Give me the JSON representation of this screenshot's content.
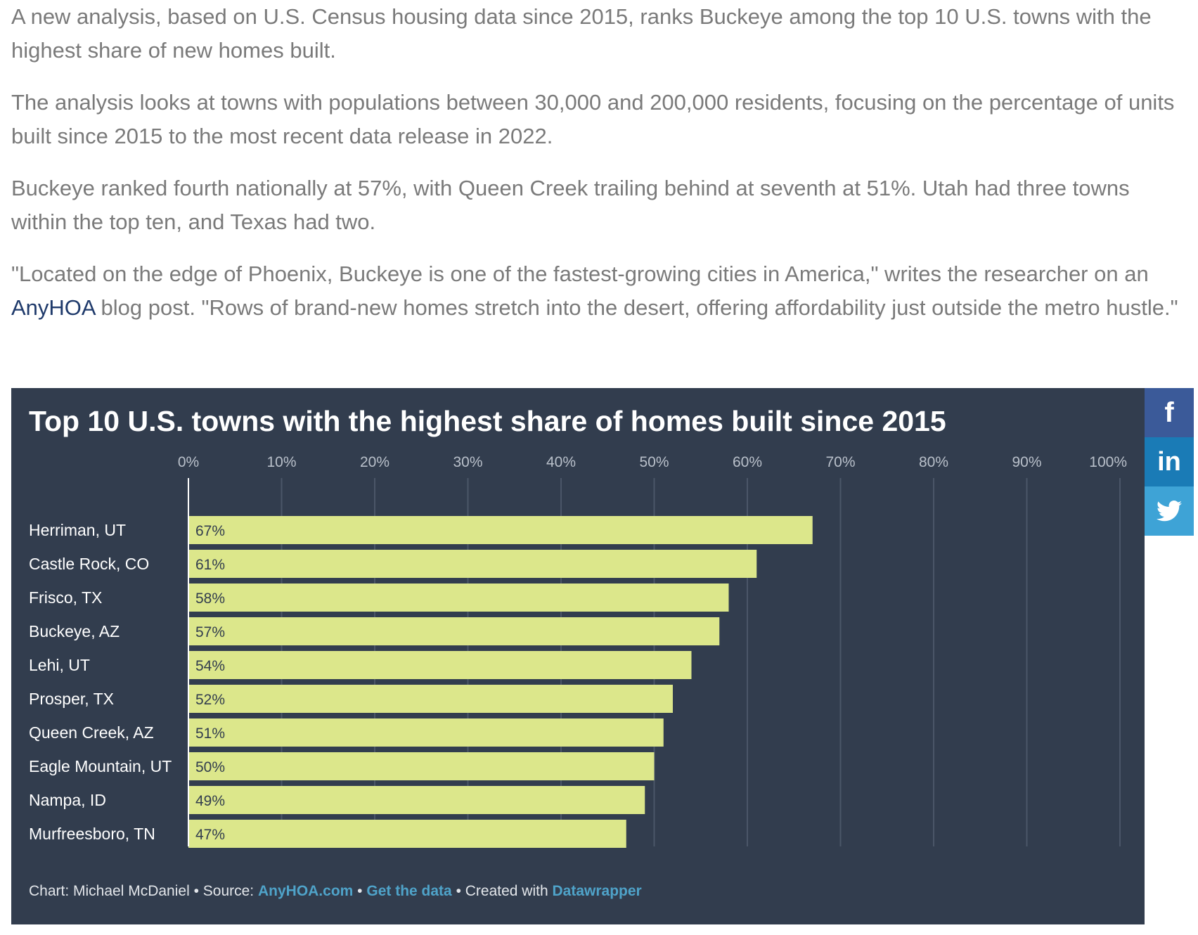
{
  "article": {
    "p1": "A new analysis, based on U.S. Census housing data since 2015, ranks Buckeye among the top 10 U.S. towns with the highest share of new homes built.",
    "p2": "The analysis looks at towns with populations between 30,000 and 200,000 residents, focusing on the percentage of units built since 2015 to the most recent data release in 2022.",
    "p3": "Buckeye ranked fourth nationally at 57%, with Queen Creek trailing behind at seventh at 51%. Utah had three towns within the top ten, and Texas had two.",
    "p4_before": "\"Located on the edge of Phoenix, Buckeye is one of the fastest-growing cities in America,\" writes the researcher on an ",
    "p4_link": "AnyHOA",
    "p4_after": " blog post. \"Rows of brand-new homes stretch into the desert, offering affordability just outside the metro hustle.\""
  },
  "footer": {
    "chart_prefix": "Chart: Michael McDaniel • Source: ",
    "source_link": "AnyHOA.com",
    "sep1": " • ",
    "data_link": "Get the data",
    "created_prefix": " • Created with ",
    "dw_link": "Datawrapper"
  },
  "share": {
    "facebook_icon": "f",
    "linkedin_icon": "in",
    "twitter_icon": "twitter-bird-icon"
  },
  "colors": {
    "background": "#323d4e",
    "bar": "#dce78b",
    "link": "#4fa3c9",
    "article_text": "#7a7a7a",
    "article_link": "#1f3a6b"
  },
  "chart_data": {
    "type": "bar",
    "orientation": "horizontal",
    "title": "Top 10 U.S. towns with the highest share of homes built since 2015",
    "categories": [
      "Herriman, UT",
      "Castle Rock, CO",
      "Frisco, TX",
      "Buckeye, AZ",
      "Lehi, UT",
      "Prosper, TX",
      "Queen Creek, AZ",
      "Eagle Mountain, UT",
      "Nampa, ID",
      "Murfreesboro, TN"
    ],
    "values": [
      67,
      61,
      58,
      57,
      54,
      52,
      51,
      50,
      49,
      47
    ],
    "value_labels": [
      "67%",
      "61%",
      "58%",
      "57%",
      "54%",
      "52%",
      "51%",
      "50%",
      "49%",
      "47%"
    ],
    "xlim": [
      0,
      100
    ],
    "xticks": [
      "0%",
      "10%",
      "20%",
      "30%",
      "40%",
      "50%",
      "60%",
      "70%",
      "80%",
      "90%",
      "100%"
    ],
    "grid": true,
    "tick_position": "top"
  }
}
